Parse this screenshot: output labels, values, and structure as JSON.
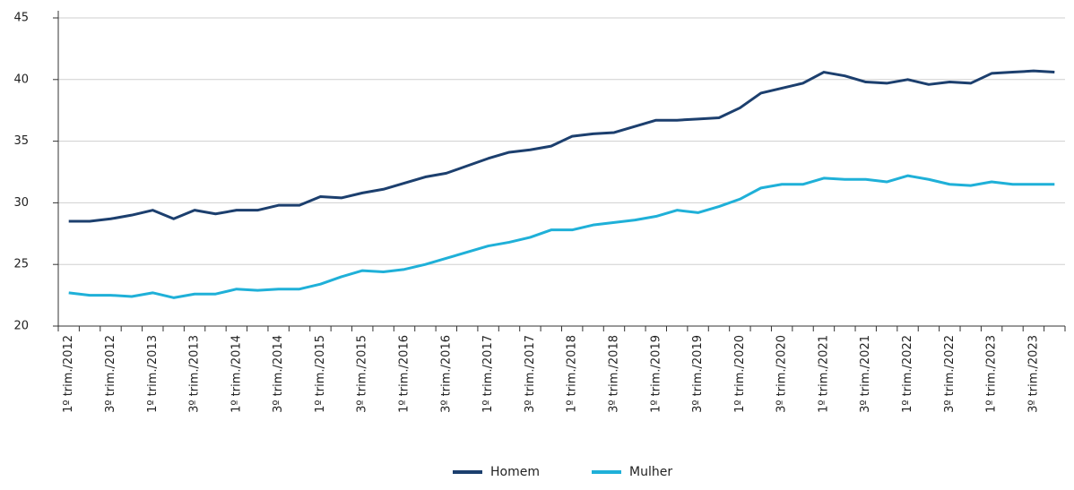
{
  "chart_data": {
    "type": "line",
    "categories": [
      "1º trim./2012",
      null,
      "3º trim./2012",
      null,
      "1º trim./2013",
      null,
      "3º trim./2013",
      null,
      "1º trim./2014",
      null,
      "3º trim./2014",
      null,
      "1º trim./2015",
      null,
      "3º trim./2015",
      null,
      "1º trim./2016",
      null,
      "3º trim./2016",
      null,
      "1º trim./2017",
      null,
      "3º trim./2017",
      null,
      "1º trim./2018",
      null,
      "3º trim./2018",
      null,
      "1º trim./2019",
      null,
      "3º trim./2019",
      null,
      "1º trim./2020",
      null,
      "3º trim./2020",
      null,
      "1º trim./2021",
      null,
      "3º trim./2021",
      null,
      "1º trim./2022",
      null,
      "3º trim./2022",
      null,
      "1º trim./2023",
      null,
      "3º trim./2023",
      null
    ],
    "series": [
      {
        "name": "Homem",
        "color": "#1c3f6e",
        "values": [
          28.5,
          28.5,
          28.7,
          29.0,
          29.4,
          28.7,
          29.4,
          29.1,
          29.4,
          29.4,
          29.8,
          29.8,
          30.5,
          30.4,
          30.8,
          31.1,
          31.6,
          32.1,
          32.4,
          33.0,
          33.6,
          34.1,
          34.3,
          34.6,
          35.4,
          35.6,
          35.7,
          36.2,
          36.7,
          36.7,
          36.8,
          36.9,
          37.7,
          38.9,
          39.3,
          39.7,
          40.6,
          40.3,
          39.8,
          39.7,
          40.0,
          39.6,
          39.8,
          39.7,
          40.5,
          40.6,
          40.7,
          40.6
        ]
      },
      {
        "name": "Mulher",
        "color": "#1fb0d8",
        "values": [
          22.7,
          22.5,
          22.5,
          22.4,
          22.7,
          22.3,
          22.6,
          22.6,
          23.0,
          22.9,
          23.0,
          23.0,
          23.4,
          24.0,
          24.5,
          24.4,
          24.6,
          25.0,
          25.5,
          26.0,
          26.5,
          26.8,
          27.2,
          27.8,
          27.8,
          28.2,
          28.4,
          28.6,
          28.9,
          29.4,
          29.2,
          29.7,
          30.3,
          31.2,
          31.5,
          31.5,
          32.0,
          31.9,
          31.9,
          31.7,
          32.2,
          31.9,
          31.5,
          31.4,
          31.7,
          31.5,
          31.5,
          31.5
        ]
      }
    ],
    "ylim": [
      20,
      45
    ],
    "yticks": [
      20,
      25,
      30,
      35,
      40,
      45
    ],
    "grid": true,
    "legend": "bottom"
  }
}
